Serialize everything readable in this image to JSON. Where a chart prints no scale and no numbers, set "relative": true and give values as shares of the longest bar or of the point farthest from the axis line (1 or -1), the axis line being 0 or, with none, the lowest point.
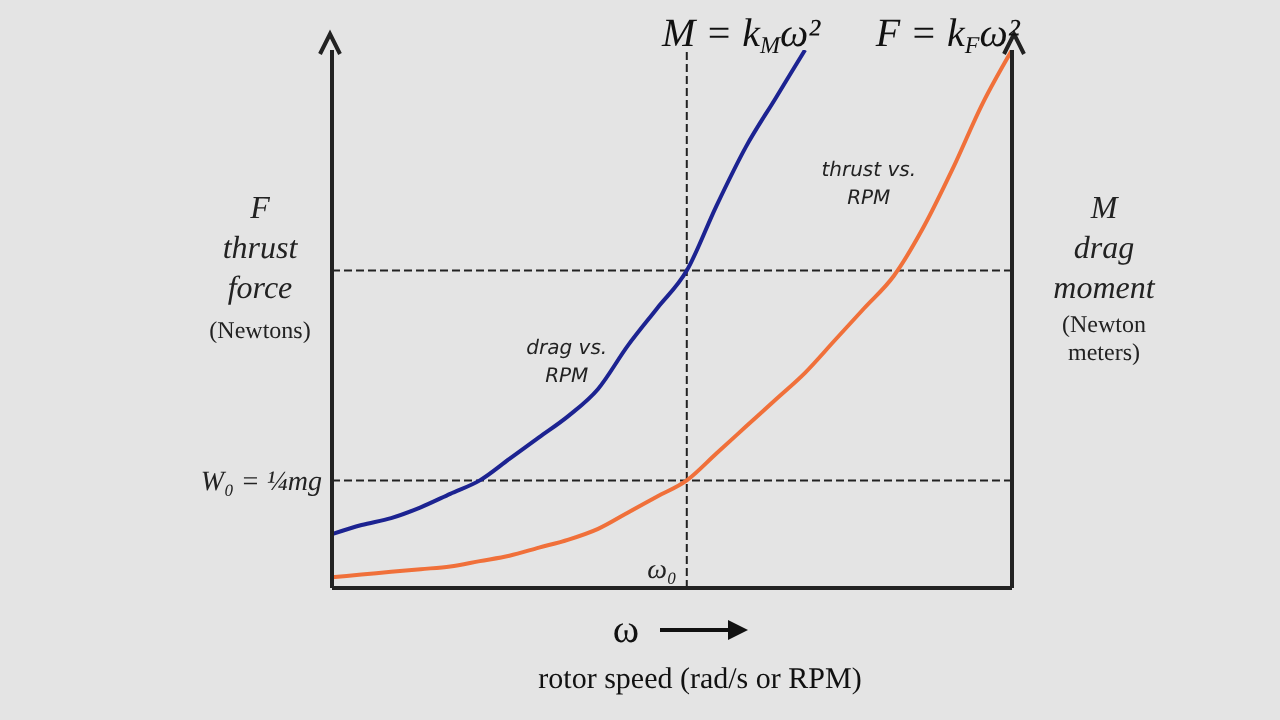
{
  "chart_data": {
    "type": "line",
    "relative": true,
    "categories": [
      null,
      null,
      null,
      null,
      null,
      null,
      null,
      null,
      null,
      null,
      null,
      null,
      null,
      null,
      null,
      null,
      null,
      null,
      null,
      null,
      null,
      null,
      null,
      null
    ],
    "series": [
      {
        "name": "drag vs. RPM",
        "color": "#1c2391",
        "values": [
          0.1,
          0.117,
          0.13,
          0.15,
          0.175,
          0.2,
          0.24,
          0.28,
          0.32,
          0.37,
          0.45,
          0.52,
          0.59,
          0.71,
          0.82,
          0.91,
          1.0,
          null,
          null,
          null,
          null,
          null,
          null,
          null
        ]
      },
      {
        "name": "thrust vs. RPM",
        "color": "#f0703a",
        "values": [
          0.02,
          0.025,
          0.03,
          0.035,
          0.04,
          0.05,
          0.06,
          0.075,
          0.09,
          0.11,
          0.14,
          0.17,
          0.2,
          0.25,
          0.3,
          0.35,
          0.4,
          0.46,
          0.52,
          0.58,
          0.67,
          0.78,
          0.9,
          1.0
        ]
      }
    ],
    "ylabel": "F\nthrust\nforce\n(Newtons)",
    "y2label": "M\ndrag\nmoment\n(Newton\nmeters)",
    "xlabel": "ω\nrotor speed (rad/s or RPM)",
    "annotations": [
      "M = k$_{M}$ω²",
      "F = k$_{F}$ω²",
      "ω₀"
    ],
    "ref_lines": [
      {
        "axis": "y",
        "value": 0.2,
        "label": "W₀ = ¼mg",
        "line_style": "dashed"
      },
      {
        "axis": "y",
        "value": 0.59,
        "label": null,
        "line_style": "dashed"
      }
    ],
    "grid": false,
    "legend": false,
    "marker": "none",
    "line_style": "solid"
  }
}
